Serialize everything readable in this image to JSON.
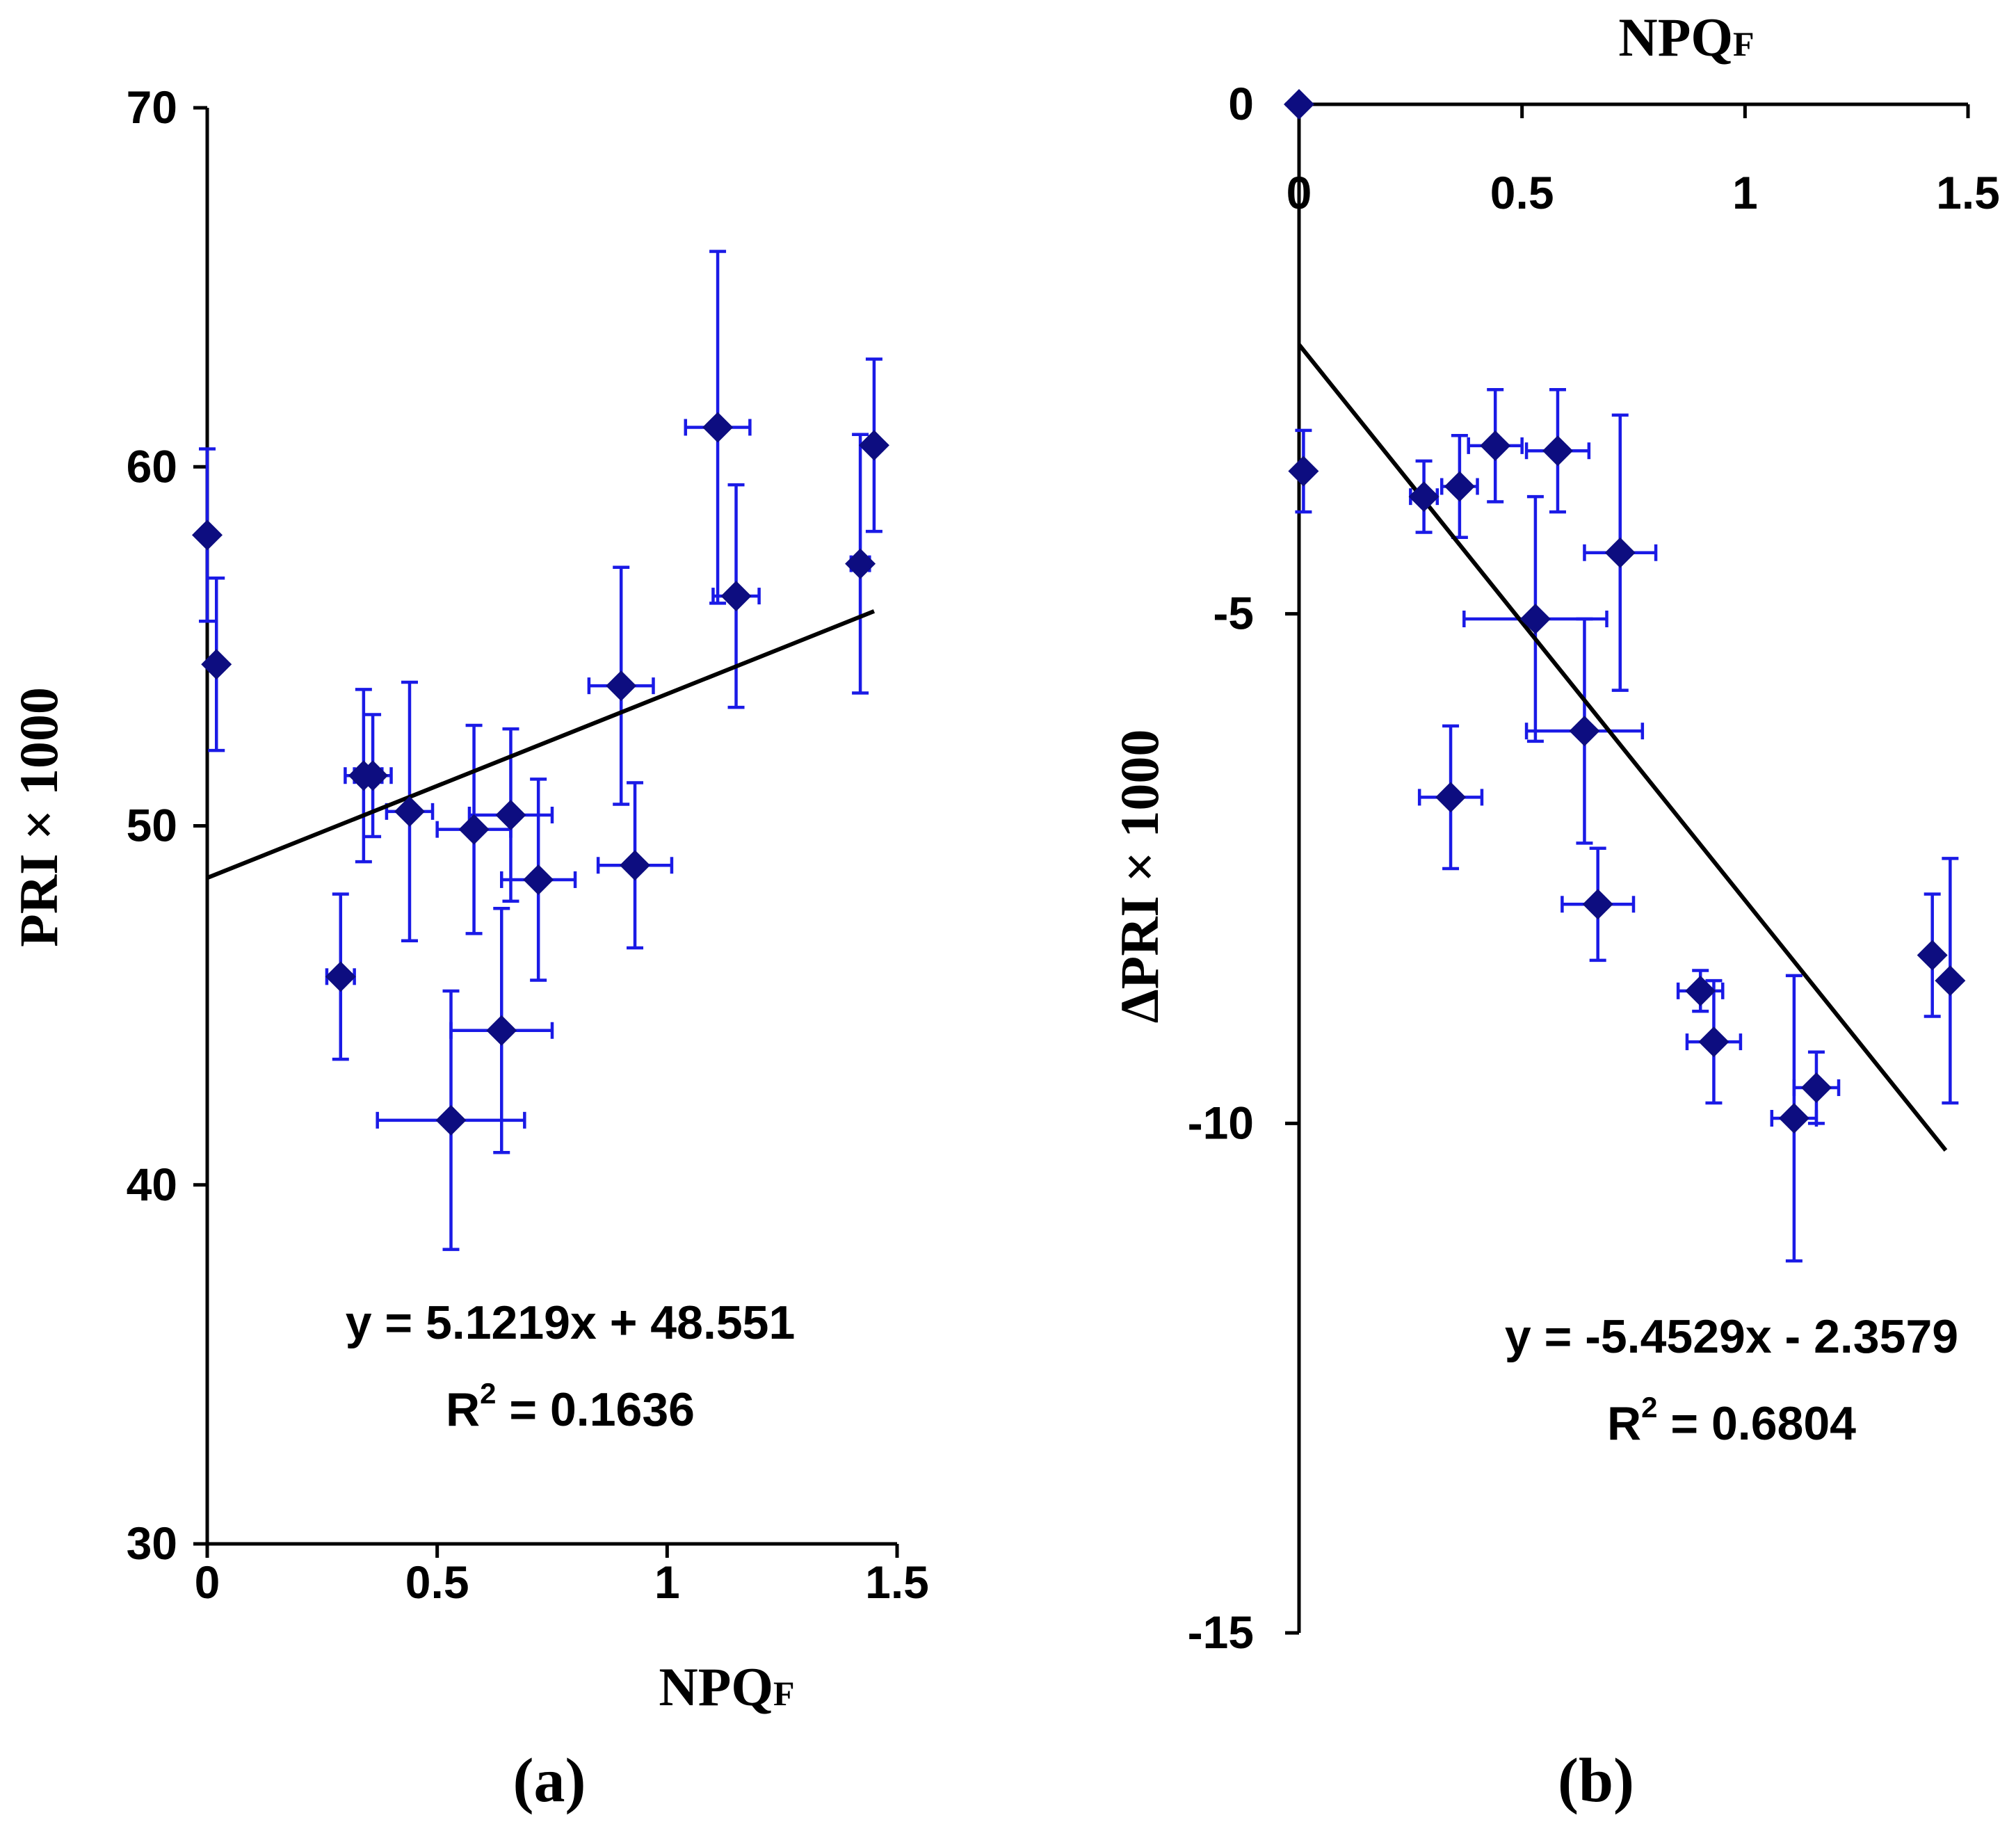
{
  "chart_data": [
    {
      "panel": "(a)",
      "type": "scatter",
      "xlabel": "NPQ",
      "xlabel_sub": "F",
      "ylabel": "PRI × 1000",
      "xlim": [
        0,
        1.5
      ],
      "ylim": [
        30,
        70
      ],
      "xticks": [
        0,
        0.5,
        1,
        1.5
      ],
      "xtick_labels": [
        "0",
        "0.5",
        "1",
        "1.5"
      ],
      "yticks": [
        30,
        40,
        50,
        60,
        70
      ],
      "ytick_labels": [
        "30",
        "40",
        "50",
        "60",
        "70"
      ],
      "xaxis_position": "bottom",
      "points": [
        {
          "x": 0.0,
          "y": 58.1,
          "xerr": 0.0,
          "yerr": 2.4
        },
        {
          "x": 0.02,
          "y": 54.5,
          "xerr": 0.0,
          "yerr": 2.4
        },
        {
          "x": 0.29,
          "y": 45.8,
          "xerr": 0.03,
          "yerr": 2.3
        },
        {
          "x": 0.34,
          "y": 51.4,
          "xerr": 0.04,
          "yerr": 2.4
        },
        {
          "x": 0.36,
          "y": 51.4,
          "xerr": 0.04,
          "yerr": 1.7
        },
        {
          "x": 0.44,
          "y": 50.4,
          "xerr": 0.05,
          "yerr": 3.6
        },
        {
          "x": 0.53,
          "y": 41.8,
          "xerr": 0.16,
          "yerr": 3.6
        },
        {
          "x": 0.58,
          "y": 49.9,
          "xerr": 0.08,
          "yerr": 2.9
        },
        {
          "x": 0.64,
          "y": 44.3,
          "xerr": 0.11,
          "yerr": 3.4
        },
        {
          "x": 0.66,
          "y": 50.3,
          "xerr": 0.09,
          "yerr": 2.4
        },
        {
          "x": 0.72,
          "y": 48.5,
          "xerr": 0.08,
          "yerr": 2.8
        },
        {
          "x": 0.9,
          "y": 53.9,
          "xerr": 0.07,
          "yerr": 3.3
        },
        {
          "x": 0.93,
          "y": 48.9,
          "xerr": 0.08,
          "yerr": 2.3
        },
        {
          "x": 1.11,
          "y": 61.1,
          "xerr": 0.07,
          "yerr": 4.9
        },
        {
          "x": 1.15,
          "y": 56.4,
          "xerr": 0.05,
          "yerr": 3.1
        },
        {
          "x": 1.42,
          "y": 57.3,
          "xerr": 0.02,
          "yerr": 3.6
        },
        {
          "x": 1.45,
          "y": 60.6,
          "xerr": 0.0,
          "yerr": 2.4
        }
      ],
      "trendline": {
        "slope": 5.1219,
        "intercept": 48.551,
        "x_range": [
          0,
          1.45
        ]
      },
      "equation": "y = 5.1219x + 48.551",
      "r2_prefix": "R",
      "r2_sup": "2",
      "r2_value": " = 0.1636"
    },
    {
      "panel": "(b)",
      "type": "scatter",
      "xlabel": "NPQ",
      "xlabel_sub": "F",
      "ylabel": "ΔPRI × 1000",
      "xlim": [
        0,
        1.5
      ],
      "ylim": [
        -15,
        0
      ],
      "xticks": [
        0,
        0.5,
        1,
        1.5
      ],
      "xtick_labels": [
        "0",
        "0.5",
        "1",
        "1.5"
      ],
      "yticks": [
        -15,
        -10,
        -5,
        0
      ],
      "ytick_labels": [
        "-15",
        "-10",
        "-5",
        "0"
      ],
      "xaxis_position": "top",
      "points": [
        {
          "x": 0.0,
          "y": 0.0,
          "xerr": 0.0,
          "yerr": 0.0
        },
        {
          "x": 0.01,
          "y": -3.6,
          "xerr": 0.0,
          "yerr": 0.4
        },
        {
          "x": 0.28,
          "y": -3.85,
          "xerr": 0.03,
          "yerr": 0.35
        },
        {
          "x": 0.34,
          "y": -6.8,
          "xerr": 0.07,
          "yerr": 0.7
        },
        {
          "x": 0.36,
          "y": -3.75,
          "xerr": 0.04,
          "yerr": 0.5
        },
        {
          "x": 0.44,
          "y": -3.35,
          "xerr": 0.06,
          "yerr": 0.55
        },
        {
          "x": 0.53,
          "y": -5.05,
          "xerr": 0.16,
          "yerr": 1.2
        },
        {
          "x": 0.58,
          "y": -3.4,
          "xerr": 0.07,
          "yerr": 0.6
        },
        {
          "x": 0.64,
          "y": -6.15,
          "xerr": 0.13,
          "yerr": 1.1
        },
        {
          "x": 0.67,
          "y": -7.85,
          "xerr": 0.08,
          "yerr": 0.55
        },
        {
          "x": 0.72,
          "y": -4.4,
          "xerr": 0.08,
          "yerr": 1.35
        },
        {
          "x": 0.9,
          "y": -8.7,
          "xerr": 0.05,
          "yerr": 0.2
        },
        {
          "x": 0.93,
          "y": -9.2,
          "xerr": 0.06,
          "yerr": 0.6
        },
        {
          "x": 1.11,
          "y": -9.95,
          "xerr": 0.05,
          "yerr": 1.4
        },
        {
          "x": 1.16,
          "y": -9.65,
          "xerr": 0.05,
          "yerr": 0.35
        },
        {
          "x": 1.42,
          "y": -8.35,
          "xerr": 0.0,
          "yerr": 0.6
        },
        {
          "x": 1.46,
          "y": -8.6,
          "xerr": 0.0,
          "yerr": 1.2
        }
      ],
      "trendline": {
        "slope": -5.4529,
        "intercept": -2.3579,
        "x_range": [
          0,
          1.45
        ]
      },
      "equation": "y = -5.4529x - 2.3579",
      "r2_prefix": "R",
      "r2_sup": "2",
      "r2_value": " = 0.6804"
    }
  ]
}
